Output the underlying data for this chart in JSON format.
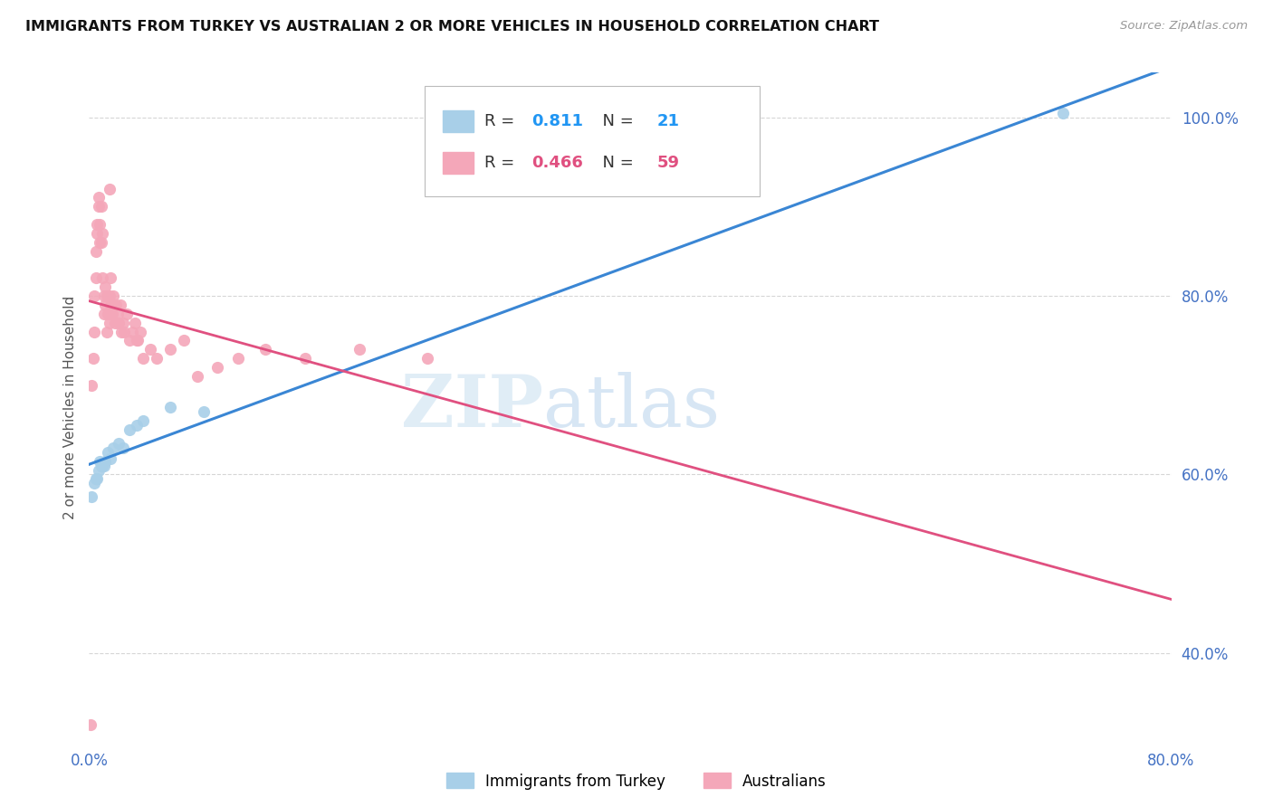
{
  "title": "IMMIGRANTS FROM TURKEY VS AUSTRALIAN 2 OR MORE VEHICLES IN HOUSEHOLD CORRELATION CHART",
  "source": "Source: ZipAtlas.com",
  "ylabel": "2 or more Vehicles in Household",
  "xlim": [
    0.0,
    0.8
  ],
  "ylim": [
    0.3,
    1.05
  ],
  "x_tick_positions": [
    0.0,
    0.8
  ],
  "x_tick_labels": [
    "0.0%",
    "80.0%"
  ],
  "y_tick_positions": [
    0.4,
    0.6,
    0.8,
    1.0
  ],
  "y_tick_labels": [
    "40.0%",
    "60.0%",
    "80.0%",
    "100.0%"
  ],
  "turkey_color": "#a8cfe8",
  "australia_color": "#f4a7b9",
  "turkey_line_color": "#3a86d4",
  "australia_line_color": "#e05080",
  "turkey_R": "0.811",
  "turkey_N": "21",
  "australia_R": "0.466",
  "australia_N": "59",
  "legend_label_turkey": "Immigrants from Turkey",
  "legend_label_australia": "Australians",
  "watermark_zip": "ZIP",
  "watermark_atlas": "atlas",
  "turkey_scatter_x": [
    0.002,
    0.004,
    0.005,
    0.006,
    0.007,
    0.008,
    0.009,
    0.01,
    0.011,
    0.012,
    0.014,
    0.016,
    0.018,
    0.022,
    0.025,
    0.03,
    0.035,
    0.04,
    0.06,
    0.085,
    0.72
  ],
  "turkey_scatter_y": [
    0.575,
    0.59,
    0.595,
    0.595,
    0.605,
    0.615,
    0.61,
    0.61,
    0.61,
    0.615,
    0.625,
    0.618,
    0.63,
    0.635,
    0.63,
    0.65,
    0.655,
    0.66,
    0.675,
    0.67,
    1.005
  ],
  "australia_scatter_x": [
    0.001,
    0.002,
    0.003,
    0.004,
    0.004,
    0.005,
    0.005,
    0.006,
    0.006,
    0.007,
    0.007,
    0.008,
    0.008,
    0.009,
    0.009,
    0.01,
    0.01,
    0.011,
    0.011,
    0.012,
    0.012,
    0.013,
    0.013,
    0.014,
    0.015,
    0.015,
    0.016,
    0.016,
    0.017,
    0.018,
    0.018,
    0.019,
    0.02,
    0.021,
    0.022,
    0.023,
    0.024,
    0.025,
    0.026,
    0.028,
    0.03,
    0.032,
    0.034,
    0.036,
    0.038,
    0.04,
    0.045,
    0.05,
    0.06,
    0.07,
    0.08,
    0.095,
    0.11,
    0.13,
    0.16,
    0.2,
    0.25,
    0.035,
    0.015
  ],
  "australia_scatter_y": [
    0.32,
    0.7,
    0.73,
    0.76,
    0.8,
    0.82,
    0.85,
    0.87,
    0.88,
    0.9,
    0.91,
    0.86,
    0.88,
    0.9,
    0.86,
    0.87,
    0.82,
    0.8,
    0.78,
    0.79,
    0.81,
    0.76,
    0.8,
    0.78,
    0.77,
    0.8,
    0.79,
    0.82,
    0.78,
    0.79,
    0.8,
    0.77,
    0.79,
    0.78,
    0.77,
    0.79,
    0.76,
    0.77,
    0.76,
    0.78,
    0.75,
    0.76,
    0.77,
    0.75,
    0.76,
    0.73,
    0.74,
    0.73,
    0.74,
    0.75,
    0.71,
    0.72,
    0.73,
    0.74,
    0.73,
    0.74,
    0.73,
    0.75,
    0.92
  ]
}
